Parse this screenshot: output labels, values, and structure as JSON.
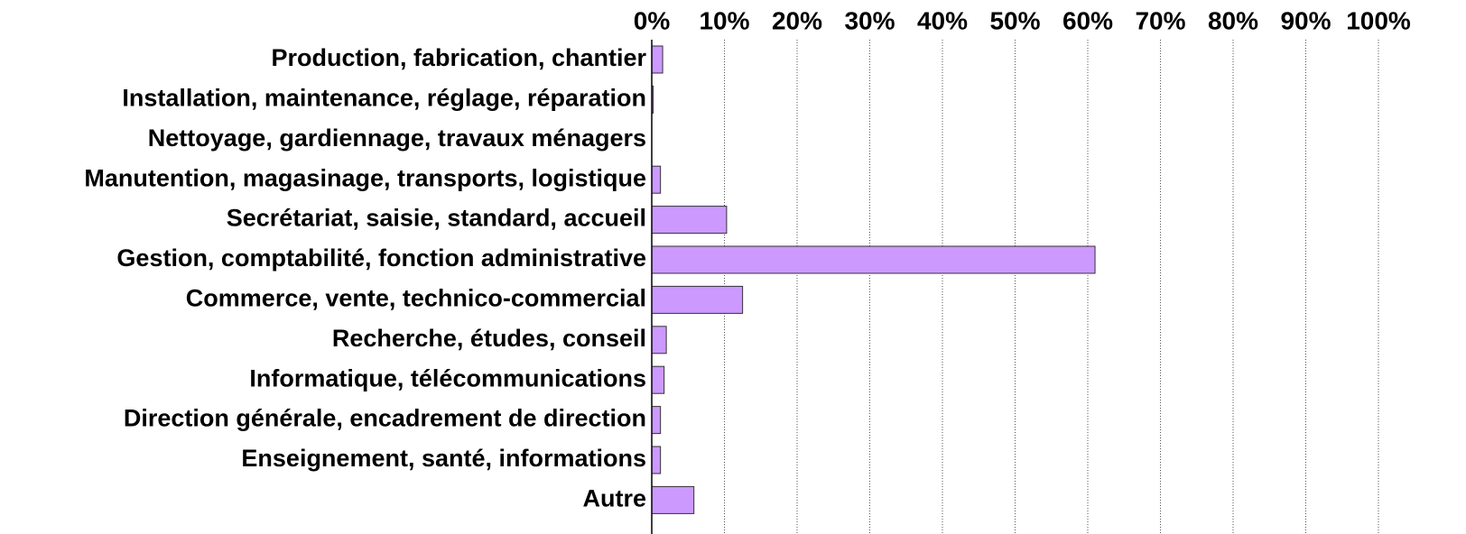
{
  "chart_data": {
    "type": "barh",
    "categories": [
      "Production, fabrication, chantier",
      "Installation, maintenance, réglage, réparation",
      "Nettoyage, gardiennage, travaux ménagers",
      "Manutention, magasinage, transports, logistique",
      "Secrétariat, saisie, standard, accueil",
      "Gestion, comptabilité, fonction administrative",
      "Commerce, vente, technico-commercial",
      "Recherche, études, conseil",
      "Informatique, télécommunications",
      "Direction générale, encadrement de direction",
      "Enseignement, santé, informations",
      "Autre"
    ],
    "values": [
      1.5,
      0.2,
      0,
      1.2,
      10.3,
      61.0,
      12.5,
      2.0,
      1.7,
      1.2,
      1.2,
      5.8
    ],
    "color": "#cc99ff",
    "xlim": [
      0,
      100
    ],
    "xticks": [
      {
        "value": 0,
        "label": "0%"
      },
      {
        "value": 10,
        "label": "10%"
      },
      {
        "value": 20,
        "label": "20%"
      },
      {
        "value": 30,
        "label": "30%"
      },
      {
        "value": 40,
        "label": "40%"
      },
      {
        "value": 50,
        "label": "50%"
      },
      {
        "value": 60,
        "label": "60%"
      },
      {
        "value": 70,
        "label": "70%"
      },
      {
        "value": 80,
        "label": "80%"
      },
      {
        "value": 90,
        "label": "90%"
      },
      {
        "value": 100,
        "label": "100%"
      }
    ],
    "grid": true
  }
}
